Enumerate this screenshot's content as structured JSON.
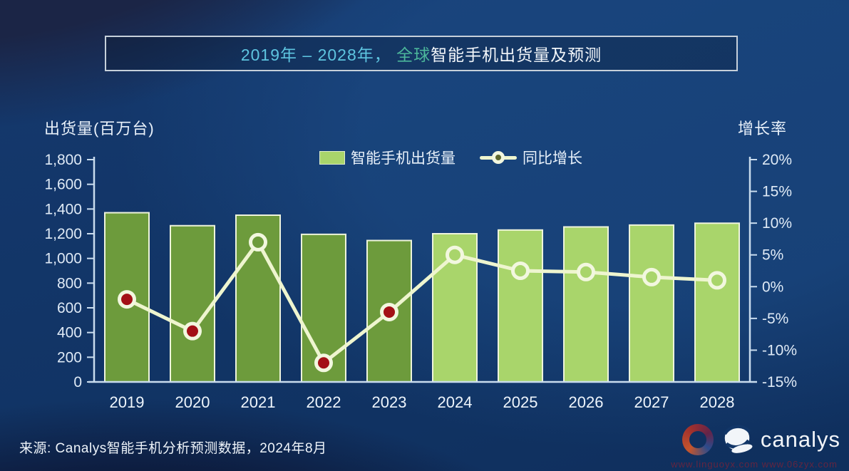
{
  "title": {
    "range": "2019年 – 2028年， ",
    "scope": "全球",
    "subject": "智能手机出货量及预测"
  },
  "left_axis_title": "出货量(百万台)",
  "right_axis_title": "增长率",
  "legend": {
    "bars_label": "智能手机出货量",
    "line_label": "同比增长"
  },
  "source": "来源: Canalys智能手机分析预测数据，2024年8月",
  "brand": {
    "name": "canalys",
    "watermark_urls": "www.linguoyx.com   www.06zyx.com"
  },
  "colors": {
    "bar_actual": "#6d9b3c",
    "bar_forecast": "#a9d56b",
    "bar_border": "#eef4dc",
    "line": "#eef5cf",
    "marker_ring": "#f2f7df",
    "marker_negative": "#a31016",
    "axis": "#c9dcee",
    "tick_text": "#dfeaf6",
    "year_text": "#eef5fc",
    "accent_cyan": "#5ec5e0",
    "accent_teal": "#4cb79b"
  },
  "chart_data": {
    "type": "bar",
    "subtype": "bar-line combo, dual axis",
    "title": "2019年 – 2028年，全球智能手机出货量及预测",
    "categories": [
      "2019",
      "2020",
      "2021",
      "2022",
      "2023",
      "2024",
      "2025",
      "2026",
      "2027",
      "2028"
    ],
    "series": [
      {
        "name": "智能手机出货量",
        "type": "bar",
        "axis": "left",
        "unit": "百万台",
        "values": [
          1370,
          1265,
          1350,
          1195,
          1145,
          1200,
          1230,
          1255,
          1270,
          1285
        ],
        "forecast_start_category": "2024"
      },
      {
        "name": "同比增长",
        "type": "line",
        "axis": "right",
        "unit": "%",
        "values": [
          -2,
          -7,
          7,
          -12,
          -4,
          5,
          2.5,
          2.3,
          1.5,
          1
        ]
      }
    ],
    "left_axis": {
      "label": "出货量(百万台)",
      "min": 0,
      "max": 1800,
      "step": 200
    },
    "right_axis": {
      "label": "增长率",
      "min": -15,
      "max": 20,
      "step": 5,
      "format": "percent"
    },
    "grid": false,
    "legend_position": "top-center"
  }
}
